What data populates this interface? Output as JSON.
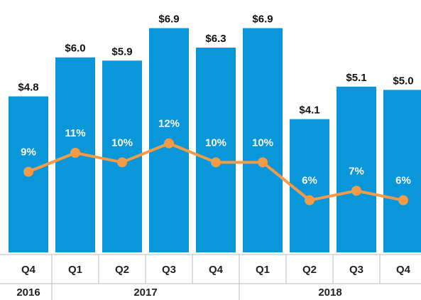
{
  "chart_data": {
    "type": "bar_line",
    "categories": [
      "Q4",
      "Q1",
      "Q2",
      "Q3",
      "Q4",
      "Q1",
      "Q2",
      "Q3",
      "Q4"
    ],
    "x_groups": [
      {
        "name": "2016",
        "span": 1
      },
      {
        "name": "2017",
        "span": 4
      },
      {
        "name": "2018",
        "span": 4
      }
    ],
    "series": [
      {
        "type": "bar",
        "color": "#0a97d9",
        "values": [
          4.8,
          6.0,
          5.9,
          6.9,
          6.3,
          6.9,
          4.1,
          5.1,
          5.0
        ],
        "value_labels": [
          "$4.8",
          "$6.0",
          "$5.9",
          "$6.9",
          "$6.3",
          "$6.9",
          "$4.1",
          "$5.1",
          "$5.0"
        ]
      },
      {
        "type": "line",
        "axis": "y2",
        "color": "#f39b46",
        "values": [
          9,
          11,
          10,
          12,
          10,
          10,
          6,
          7,
          6
        ],
        "value_labels": [
          "9%",
          "11%",
          "10%",
          "12%",
          "10%",
          "10%",
          "6%",
          "7%",
          "6%"
        ]
      }
    ],
    "ylim": [
      0,
      7
    ],
    "y2lim": [
      0.5,
      24.5
    ]
  }
}
